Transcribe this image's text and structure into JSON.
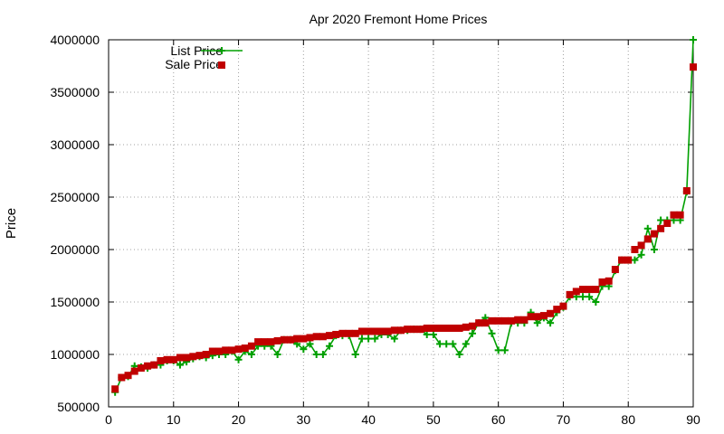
{
  "chart_data": {
    "type": "line",
    "title": "Apr 2020 Fremont Home Prices",
    "xlabel": "",
    "ylabel": "Price",
    "xlim": [
      0,
      90
    ],
    "ylim": [
      500000,
      4000000
    ],
    "xticks": [
      0,
      10,
      20,
      30,
      40,
      50,
      60,
      70,
      80,
      90
    ],
    "yticks": [
      500000,
      1000000,
      1500000,
      2000000,
      2500000,
      3000000,
      3500000,
      4000000
    ],
    "grid": true,
    "legend_position": "top-left",
    "x": [
      1,
      2,
      3,
      4,
      5,
      6,
      7,
      8,
      9,
      10,
      11,
      12,
      13,
      14,
      15,
      16,
      17,
      18,
      19,
      20,
      21,
      22,
      23,
      24,
      25,
      26,
      27,
      28,
      29,
      30,
      31,
      32,
      33,
      34,
      35,
      36,
      37,
      38,
      39,
      40,
      41,
      42,
      43,
      44,
      45,
      46,
      47,
      48,
      49,
      50,
      51,
      52,
      53,
      54,
      55,
      56,
      57,
      58,
      59,
      60,
      61,
      62,
      63,
      64,
      65,
      66,
      67,
      68,
      69,
      70,
      71,
      72,
      73,
      74,
      75,
      76,
      77,
      78,
      79,
      80,
      81,
      82,
      83,
      84,
      85,
      86,
      87,
      88,
      89,
      90
    ],
    "series": [
      {
        "name": "List Price",
        "color": "#00a000",
        "marker": "plus",
        "values": [
          640000,
          780000,
          790000,
          890000,
          880000,
          870000,
          900000,
          900000,
          940000,
          940000,
          900000,
          930000,
          960000,
          980000,
          970000,
          990000,
          1000000,
          1000000,
          1030000,
          950000,
          1030000,
          1000000,
          1080000,
          1080000,
          1080000,
          1000000,
          1140000,
          1140000,
          1100000,
          1050000,
          1100000,
          1000000,
          1000000,
          1080000,
          1180000,
          1180000,
          1180000,
          1000000,
          1150000,
          1150000,
          1150000,
          1190000,
          1190000,
          1150000,
          1230000,
          1230000,
          1240000,
          1240000,
          1190000,
          1190000,
          1100000,
          1100000,
          1100000,
          1000000,
          1100000,
          1200000,
          1300000,
          1350000,
          1200000,
          1040000,
          1040000,
          1300000,
          1300000,
          1300000,
          1400000,
          1300000,
          1350000,
          1300000,
          1400000,
          1450000,
          1550000,
          1550000,
          1550000,
          1550000,
          1500000,
          1650000,
          1650000,
          1800000,
          1900000,
          1900000,
          1900000,
          1950000,
          2200000,
          2000000,
          2280000,
          2280000,
          2280000,
          2280000,
          2550000,
          4000000
        ]
      },
      {
        "name": "Sale Price",
        "color": "#c00000",
        "marker": "square",
        "values": [
          670000,
          780000,
          800000,
          840000,
          870000,
          890000,
          900000,
          940000,
          950000,
          950000,
          970000,
          970000,
          980000,
          990000,
          1000000,
          1030000,
          1030000,
          1040000,
          1040000,
          1050000,
          1060000,
          1080000,
          1120000,
          1120000,
          1120000,
          1130000,
          1140000,
          1140000,
          1150000,
          1150000,
          1160000,
          1170000,
          1170000,
          1180000,
          1190000,
          1200000,
          1200000,
          1200000,
          1220000,
          1220000,
          1220000,
          1220000,
          1220000,
          1230000,
          1230000,
          1240000,
          1240000,
          1240000,
          1250000,
          1250000,
          1250000,
          1250000,
          1250000,
          1250000,
          1260000,
          1270000,
          1300000,
          1300000,
          1320000,
          1320000,
          1320000,
          1320000,
          1330000,
          1330000,
          1360000,
          1360000,
          1370000,
          1390000,
          1430000,
          1460000,
          1570000,
          1600000,
          1620000,
          1620000,
          1620000,
          1690000,
          1700000,
          1810000,
          1900000,
          1900000,
          2000000,
          2040000,
          2100000,
          2150000,
          2200000,
          2250000,
          2330000,
          2330000,
          2560000,
          3740000
        ]
      }
    ]
  }
}
